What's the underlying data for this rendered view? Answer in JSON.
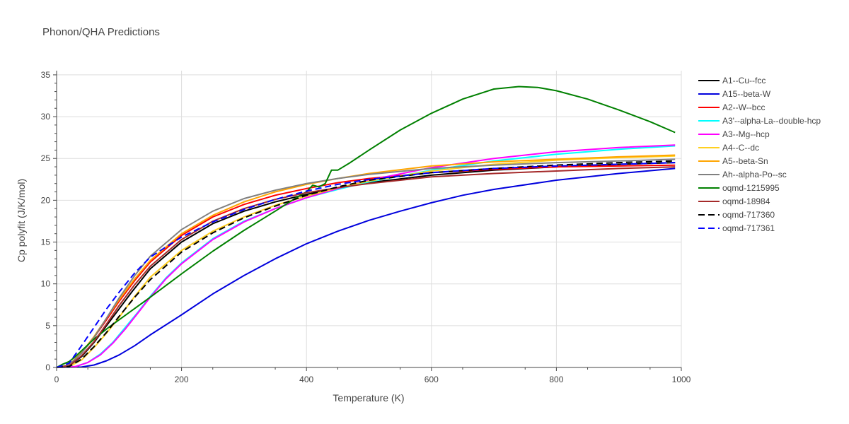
{
  "chart_data": {
    "type": "line",
    "title": "Phonon/QHA Predictions",
    "xlabel": "Temperature (K)",
    "ylabel": "Cp polyfit (J/K/mol)",
    "xlim": [
      0,
      1000
    ],
    "ylim": [
      0,
      35.5
    ],
    "x_ticks": [
      0,
      200,
      400,
      600,
      800,
      1000
    ],
    "y_ticks": [
      0,
      5,
      10,
      15,
      20,
      25,
      30,
      35
    ],
    "grid": true,
    "legend_position": "right",
    "series": [
      {
        "name": "A1--Cu--fcc",
        "color": "#000000",
        "dash": "solid",
        "points": [
          [
            0,
            0
          ],
          [
            20,
            0.2
          ],
          [
            40,
            1.3
          ],
          [
            60,
            3.0
          ],
          [
            80,
            5.0
          ],
          [
            100,
            7.0
          ],
          [
            120,
            9.0
          ],
          [
            150,
            11.8
          ],
          [
            200,
            15.0
          ],
          [
            250,
            17.2
          ],
          [
            300,
            18.7
          ],
          [
            350,
            19.8
          ],
          [
            400,
            20.7
          ],
          [
            450,
            21.5
          ],
          [
            500,
            22.1
          ],
          [
            600,
            23.0
          ],
          [
            700,
            23.6
          ],
          [
            800,
            24.0
          ],
          [
            900,
            24.3
          ],
          [
            990,
            24.5
          ]
        ]
      },
      {
        "name": "A15--beta-W",
        "color": "#0000dd",
        "dash": "solid",
        "points": [
          [
            0,
            0
          ],
          [
            40,
            0.05
          ],
          [
            60,
            0.3
          ],
          [
            80,
            0.8
          ],
          [
            100,
            1.5
          ],
          [
            125,
            2.6
          ],
          [
            150,
            3.9
          ],
          [
            200,
            6.3
          ],
          [
            250,
            8.8
          ],
          [
            300,
            11.0
          ],
          [
            350,
            13.0
          ],
          [
            400,
            14.8
          ],
          [
            450,
            16.3
          ],
          [
            500,
            17.6
          ],
          [
            550,
            18.7
          ],
          [
            600,
            19.7
          ],
          [
            650,
            20.6
          ],
          [
            700,
            21.3
          ],
          [
            800,
            22.4
          ],
          [
            900,
            23.2
          ],
          [
            990,
            23.8
          ]
        ]
      },
      {
        "name": "A2--W--bcc",
        "color": "#ff0000",
        "dash": "solid",
        "points": [
          [
            0,
            0
          ],
          [
            20,
            0.3
          ],
          [
            40,
            1.8
          ],
          [
            60,
            3.6
          ],
          [
            80,
            5.7
          ],
          [
            100,
            7.9
          ],
          [
            125,
            10.4
          ],
          [
            150,
            12.6
          ],
          [
            200,
            15.8
          ],
          [
            250,
            18.0
          ],
          [
            300,
            19.5
          ],
          [
            350,
            20.6
          ],
          [
            400,
            21.4
          ],
          [
            450,
            22.1
          ],
          [
            500,
            22.6
          ],
          [
            600,
            23.3
          ],
          [
            700,
            23.7
          ],
          [
            800,
            24.0
          ],
          [
            900,
            24.1
          ],
          [
            990,
            24.2
          ]
        ]
      },
      {
        "name": "A3'--alpha-La--double-hcp",
        "color": "#00ffff",
        "dash": "solid",
        "points": [
          [
            0,
            0
          ],
          [
            30,
            0.1
          ],
          [
            50,
            0.6
          ],
          [
            70,
            1.6
          ],
          [
            90,
            3.0
          ],
          [
            110,
            4.8
          ],
          [
            130,
            6.6
          ],
          [
            150,
            8.5
          ],
          [
            175,
            10.7
          ],
          [
            200,
            12.5
          ],
          [
            250,
            15.4
          ],
          [
            300,
            17.5
          ],
          [
            350,
            19.0
          ],
          [
            400,
            20.3
          ],
          [
            450,
            21.3
          ],
          [
            500,
            22.2
          ],
          [
            600,
            23.6
          ],
          [
            700,
            24.7
          ],
          [
            800,
            25.5
          ],
          [
            900,
            26.1
          ],
          [
            990,
            26.5
          ]
        ]
      },
      {
        "name": "A3--Mg--hcp",
        "color": "#ff00ff",
        "dash": "solid",
        "points": [
          [
            0,
            0
          ],
          [
            30,
            0.1
          ],
          [
            50,
            0.6
          ],
          [
            70,
            1.5
          ],
          [
            90,
            2.9
          ],
          [
            110,
            4.6
          ],
          [
            130,
            6.5
          ],
          [
            150,
            8.4
          ],
          [
            175,
            10.6
          ],
          [
            200,
            12.4
          ],
          [
            250,
            15.3
          ],
          [
            300,
            17.4
          ],
          [
            350,
            19.0
          ],
          [
            400,
            20.3
          ],
          [
            450,
            21.4
          ],
          [
            500,
            22.4
          ],
          [
            600,
            23.9
          ],
          [
            700,
            25.0
          ],
          [
            800,
            25.8
          ],
          [
            900,
            26.3
          ],
          [
            990,
            26.6
          ]
        ]
      },
      {
        "name": "A4--C--dc",
        "color": "#ffd020",
        "dash": "solid",
        "points": [
          [
            0,
            0
          ],
          [
            20,
            0.1
          ],
          [
            40,
            0.9
          ],
          [
            60,
            2.4
          ],
          [
            80,
            4.1
          ],
          [
            100,
            6.0
          ],
          [
            125,
            8.5
          ],
          [
            150,
            10.8
          ],
          [
            200,
            14.0
          ],
          [
            250,
            16.3
          ],
          [
            300,
            18.0
          ],
          [
            350,
            19.4
          ],
          [
            400,
            20.5
          ],
          [
            450,
            21.5
          ],
          [
            500,
            22.3
          ],
          [
            600,
            23.5
          ],
          [
            700,
            24.3
          ],
          [
            800,
            24.8
          ],
          [
            900,
            25.1
          ],
          [
            990,
            25.3
          ]
        ]
      },
      {
        "name": "A5--beta-Sn",
        "color": "#ffa500",
        "dash": "solid",
        "points": [
          [
            0,
            0
          ],
          [
            20,
            0.3
          ],
          [
            40,
            1.8
          ],
          [
            60,
            3.7
          ],
          [
            80,
            5.9
          ],
          [
            100,
            8.1
          ],
          [
            125,
            10.6
          ],
          [
            150,
            12.8
          ],
          [
            200,
            16.0
          ],
          [
            250,
            18.2
          ],
          [
            300,
            19.8
          ],
          [
            350,
            21.0
          ],
          [
            400,
            21.9
          ],
          [
            450,
            22.6
          ],
          [
            500,
            23.2
          ],
          [
            600,
            24.1
          ],
          [
            700,
            24.6
          ],
          [
            800,
            24.9
          ],
          [
            900,
            25.2
          ],
          [
            990,
            25.4
          ]
        ]
      },
      {
        "name": "Ah--alpha-Po--sc",
        "color": "#808080",
        "dash": "solid",
        "points": [
          [
            0,
            0
          ],
          [
            20,
            0.3
          ],
          [
            40,
            1.7
          ],
          [
            60,
            3.6
          ],
          [
            80,
            5.9
          ],
          [
            100,
            8.3
          ],
          [
            125,
            11.0
          ],
          [
            150,
            13.3
          ],
          [
            200,
            16.5
          ],
          [
            250,
            18.7
          ],
          [
            300,
            20.2
          ],
          [
            350,
            21.2
          ],
          [
            400,
            22.0
          ],
          [
            450,
            22.6
          ],
          [
            500,
            23.1
          ],
          [
            600,
            23.8
          ],
          [
            700,
            24.2
          ],
          [
            800,
            24.5
          ],
          [
            900,
            24.7
          ],
          [
            990,
            24.9
          ]
        ]
      },
      {
        "name": "oqmd-1215995",
        "color": "#008000",
        "dash": "solid",
        "points": [
          [
            0,
            0
          ],
          [
            10,
            0.4
          ],
          [
            20,
            0.7
          ],
          [
            30,
            1.3
          ],
          [
            40,
            2.0
          ],
          [
            60,
            3.4
          ],
          [
            80,
            4.6
          ],
          [
            100,
            5.7
          ],
          [
            150,
            8.4
          ],
          [
            200,
            11.2
          ],
          [
            250,
            13.9
          ],
          [
            300,
            16.4
          ],
          [
            350,
            18.7
          ],
          [
            390,
            20.6
          ],
          [
            400,
            21.0
          ],
          [
            410,
            21.8
          ],
          [
            420,
            21.6
          ],
          [
            430,
            22.0
          ],
          [
            440,
            23.6
          ],
          [
            450,
            23.6
          ],
          [
            470,
            24.5
          ],
          [
            500,
            26.0
          ],
          [
            550,
            28.4
          ],
          [
            600,
            30.4
          ],
          [
            650,
            32.1
          ],
          [
            700,
            33.3
          ],
          [
            740,
            33.6
          ],
          [
            770,
            33.5
          ],
          [
            800,
            33.1
          ],
          [
            850,
            32.1
          ],
          [
            900,
            30.8
          ],
          [
            950,
            29.4
          ],
          [
            990,
            28.1
          ]
        ]
      },
      {
        "name": "oqmd-18984",
        "color": "#a52a2a",
        "dash": "solid",
        "points": [
          [
            0,
            0
          ],
          [
            20,
            0.2
          ],
          [
            40,
            1.4
          ],
          [
            60,
            3.1
          ],
          [
            80,
            5.2
          ],
          [
            100,
            7.4
          ],
          [
            125,
            9.9
          ],
          [
            150,
            12.1
          ],
          [
            200,
            15.3
          ],
          [
            250,
            17.5
          ],
          [
            300,
            19.0
          ],
          [
            350,
            20.1
          ],
          [
            400,
            20.9
          ],
          [
            450,
            21.5
          ],
          [
            500,
            22.0
          ],
          [
            600,
            22.8
          ],
          [
            700,
            23.2
          ],
          [
            800,
            23.5
          ],
          [
            900,
            23.8
          ],
          [
            990,
            24.0
          ]
        ]
      },
      {
        "name": "oqmd-717360",
        "color": "#000000",
        "dash": "dash",
        "points": [
          [
            0,
            0
          ],
          [
            20,
            0.1
          ],
          [
            40,
            1.0
          ],
          [
            60,
            2.5
          ],
          [
            80,
            4.2
          ],
          [
            100,
            6.1
          ],
          [
            125,
            8.4
          ],
          [
            150,
            10.5
          ],
          [
            200,
            13.8
          ],
          [
            250,
            16.1
          ],
          [
            300,
            17.9
          ],
          [
            350,
            19.3
          ],
          [
            400,
            20.6
          ],
          [
            450,
            21.6
          ],
          [
            500,
            22.4
          ],
          [
            600,
            23.3
          ],
          [
            700,
            23.8
          ],
          [
            800,
            24.2
          ],
          [
            900,
            24.5
          ],
          [
            990,
            24.7
          ]
        ]
      },
      {
        "name": "oqmd-717361",
        "color": "#0000ff",
        "dash": "dash",
        "points": [
          [
            0,
            0
          ],
          [
            20,
            0.5
          ],
          [
            40,
            2.6
          ],
          [
            60,
            4.8
          ],
          [
            80,
            7.0
          ],
          [
            100,
            9.0
          ],
          [
            125,
            11.3
          ],
          [
            150,
            13.2
          ],
          [
            200,
            15.6
          ],
          [
            250,
            17.4
          ],
          [
            300,
            18.9
          ],
          [
            350,
            20.1
          ],
          [
            400,
            21.1
          ],
          [
            450,
            21.9
          ],
          [
            500,
            22.5
          ],
          [
            600,
            23.3
          ],
          [
            700,
            23.8
          ],
          [
            800,
            24.1
          ],
          [
            900,
            24.3
          ],
          [
            990,
            24.5
          ]
        ]
      }
    ]
  }
}
